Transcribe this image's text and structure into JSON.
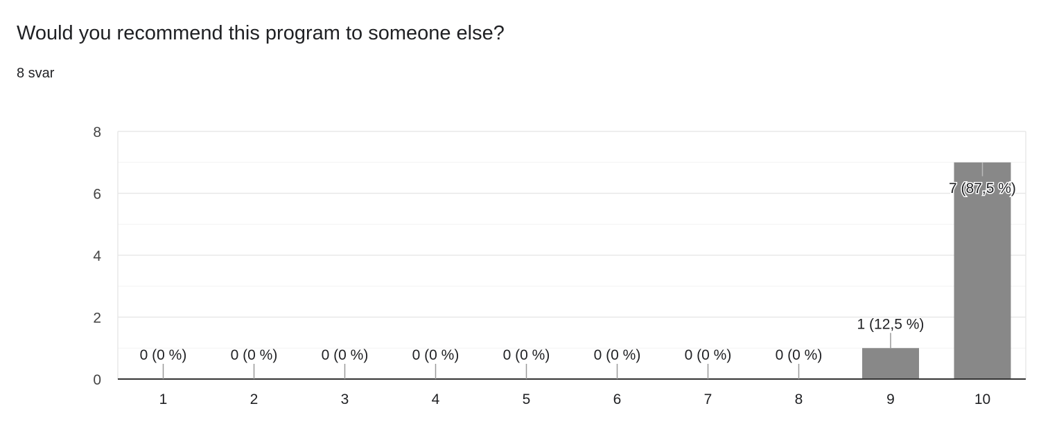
{
  "question": {
    "title": "Would you recommend this program to someone else?",
    "response_count": "8 svar"
  },
  "colors": {
    "bar": "#888888",
    "gridline": "#e8e8e8",
    "minor_gridline": "#f3f3f3",
    "axis": "#333333",
    "text": "#202124",
    "tick_text": "#444444"
  },
  "chart_data": {
    "type": "bar",
    "categories": [
      "1",
      "2",
      "3",
      "4",
      "5",
      "6",
      "7",
      "8",
      "9",
      "10"
    ],
    "values": [
      0,
      0,
      0,
      0,
      0,
      0,
      0,
      0,
      1,
      7
    ],
    "data_labels": [
      "0 (0 %)",
      "0 (0 %)",
      "0 (0 %)",
      "0 (0 %)",
      "0 (0 %)",
      "0 (0 %)",
      "0 (0 %)",
      "0 (0 %)",
      "1 (12,5 %)",
      "7 (87,5 %)"
    ],
    "title": "",
    "xlabel": "",
    "ylabel": "",
    "ylim": [
      0,
      8
    ],
    "yticks": [
      0,
      2,
      4,
      6,
      8
    ],
    "grid": true,
    "legend": "none"
  }
}
